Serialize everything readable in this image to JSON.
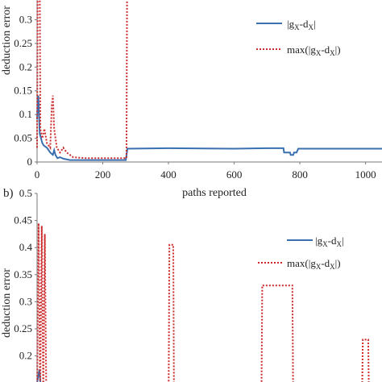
{
  "chart_data": [
    {
      "panel": "a",
      "type": "line",
      "xlabel": "paths reported",
      "ylabel": "deduction error",
      "xlim": [
        0,
        1050
      ],
      "ylim": [
        0,
        0.35
      ],
      "x_ticks": [
        "0",
        "200",
        "400",
        "600",
        "800",
        "1000"
      ],
      "y_ticks": [
        "0",
        "0.05",
        "0.1",
        "0.15",
        "0.2",
        "0.25",
        "0.3"
      ],
      "legend_position": "top-right",
      "series": [
        {
          "name": "|g_x-d_x|",
          "name_main": "|g",
          "name_sub1": "X",
          "name_mid": "-d",
          "name_sub2": "X",
          "name_tail": "|",
          "color": "#3a6fb0",
          "style": "solid",
          "points": [
            [
              0,
              0.09
            ],
            [
              2,
              0.13
            ],
            [
              4,
              0.14
            ],
            [
              6,
              0.1
            ],
            [
              8,
              0.06
            ],
            [
              12,
              0.05
            ],
            [
              16,
              0.04
            ],
            [
              20,
              0.035
            ],
            [
              30,
              0.03
            ],
            [
              40,
              0.02
            ],
            [
              48,
              0.015
            ],
            [
              52,
              0.025
            ],
            [
              56,
              0.015
            ],
            [
              62,
              0.008
            ],
            [
              70,
              0.01
            ],
            [
              80,
              0.007
            ],
            [
              100,
              0.004
            ],
            [
              150,
              0.004
            ],
            [
              200,
              0.004
            ],
            [
              250,
              0.004
            ],
            [
              270,
              0.004
            ],
            [
              275,
              0.028
            ],
            [
              400,
              0.029
            ],
            [
              600,
              0.028
            ],
            [
              700,
              0.029
            ],
            [
              750,
              0.029
            ],
            [
              752,
              0.02
            ],
            [
              770,
              0.02
            ],
            [
              772,
              0.015
            ],
            [
              780,
              0.015
            ],
            [
              782,
              0.02
            ],
            [
              790,
              0.02
            ],
            [
              795,
              0.028
            ],
            [
              1050,
              0.028
            ]
          ]
        },
        {
          "name": "max(|g_x-d_x|)",
          "name_main": "max(|g",
          "name_sub1": "X",
          "name_mid": "-d",
          "name_sub2": "X",
          "name_tail": "|)",
          "color": "#cc2a2a",
          "style": "dotted",
          "points": [
            [
              0,
              0.03
            ],
            [
              2,
              0.38
            ],
            [
              8,
              0.38
            ],
            [
              10,
              0.07
            ],
            [
              16,
              0.05
            ],
            [
              22,
              0.07
            ],
            [
              30,
              0.04
            ],
            [
              40,
              0.03
            ],
            [
              45,
              0.12
            ],
            [
              48,
              0.14
            ],
            [
              52,
              0.07
            ],
            [
              60,
              0.03
            ],
            [
              70,
              0.02
            ],
            [
              80,
              0.03
            ],
            [
              90,
              0.02
            ],
            [
              110,
              0.01
            ],
            [
              150,
              0.008
            ],
            [
              200,
              0.008
            ],
            [
              250,
              0.008
            ],
            [
              272,
              0.008
            ],
            [
              274,
              0.38
            ]
          ]
        }
      ]
    },
    {
      "panel": "b",
      "panel_label": "b)",
      "type": "line",
      "ylabel": "deduction error",
      "ylim": [
        0,
        0.5
      ],
      "y_ticks": [
        "0.5",
        "0.45",
        "0.4",
        "0.35",
        "0.3",
        "0.25",
        "0.2"
      ],
      "legend_position": "top-right",
      "series": [
        {
          "name": "|g_x-d_x|",
          "name_main": "|g",
          "name_sub1": "X",
          "name_mid": "-d",
          "name_sub2": "X",
          "name_tail": "|",
          "color": "#3a6fb0",
          "style": "solid",
          "points": [
            [
              0,
              0.15
            ],
            [
              3,
              0.175
            ],
            [
              6,
              0.12
            ]
          ]
        },
        {
          "name": "max(|g_x-d_x|)",
          "name_main": "max(|g",
          "name_sub1": "X",
          "name_mid": "-d",
          "name_sub2": "X",
          "name_tail": "|)",
          "color": "#cc2a2a",
          "style": "dotted",
          "points": [
            [
              0,
              0.12
            ],
            [
              2,
              0.445
            ],
            [
              4,
              0.12
            ],
            [
              6,
              0.44
            ],
            [
              8,
              0.12
            ],
            [
              10,
              0.425
            ],
            [
              12,
              0.12
            ],
            [
              14,
              0.13
            ],
            [
              18,
              0.12
            ],
            [
              170,
              0.12
            ],
            [
              171,
              0.405
            ],
            [
              176,
              0.405
            ],
            [
              177,
              0.12
            ],
            [
              290,
              0.12
            ],
            [
              291,
              0.33
            ],
            [
              330,
              0.33
            ],
            [
              331,
              0.12
            ],
            [
              420,
              0.12
            ],
            [
              421,
              0.23
            ],
            [
              428,
              0.23
            ],
            [
              429,
              0.12
            ]
          ]
        }
      ]
    }
  ]
}
